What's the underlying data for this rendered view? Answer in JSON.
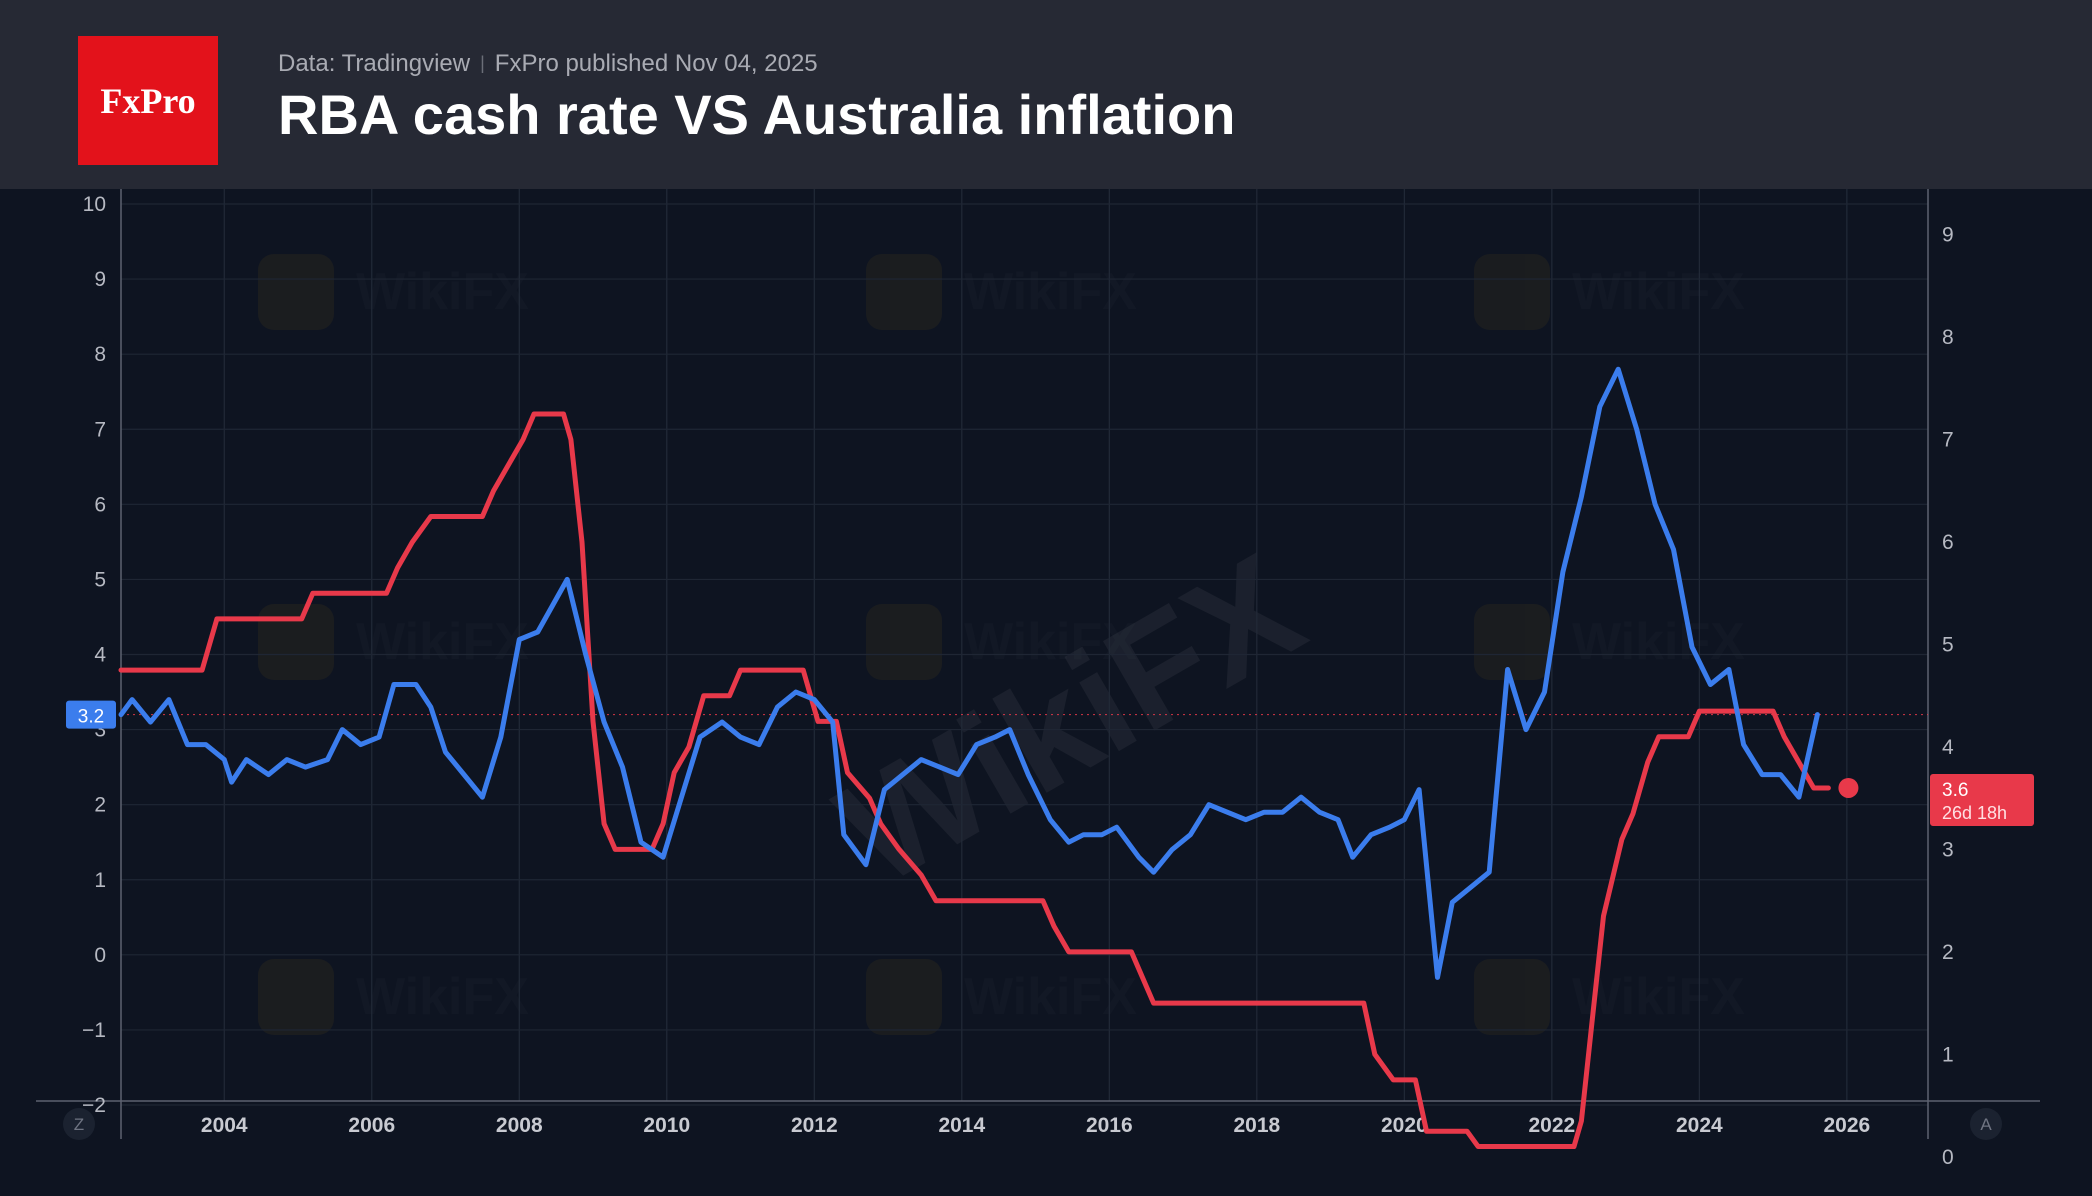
{
  "header": {
    "logo_text": "FxPro",
    "source": "Data: Tradingview",
    "published": "FxPro published Nov 04, 2025",
    "title": "RBA cash rate VS Australia inflation"
  },
  "watermark": "WikiFX",
  "colors": {
    "inflation": "#3b7ded",
    "cash_rate": "#e8394a",
    "background": "#0e1421",
    "header_bg": "#262934",
    "logo": "#e3121b"
  },
  "corner_buttons": {
    "left": "Z",
    "right": "A"
  },
  "chart_data": {
    "type": "line",
    "title": "RBA cash rate VS Australia inflation",
    "x_range": [
      2002.6,
      2027.1
    ],
    "x_ticks": [
      2004,
      2006,
      2008,
      2010,
      2012,
      2014,
      2016,
      2018,
      2020,
      2022,
      2024,
      2026
    ],
    "left_axis": {
      "range": [
        -2,
        10
      ],
      "ticks": [
        -2,
        -1,
        0,
        1,
        2,
        3,
        4,
        5,
        6,
        7,
        8,
        9,
        10
      ]
    },
    "right_axis": {
      "range": [
        -0.5,
        9.3
      ],
      "ticks": [
        0,
        1,
        2,
        3,
        4,
        5,
        6,
        7,
        8,
        9
      ]
    },
    "series": [
      {
        "name": "Australia inflation",
        "axis": "left",
        "color": "#3b7ded",
        "last_label": "3.2",
        "points": [
          [
            2002.6,
            3.2
          ],
          [
            2002.75,
            3.4
          ],
          [
            2003.0,
            3.1
          ],
          [
            2003.25,
            3.4
          ],
          [
            2003.5,
            2.8
          ],
          [
            2003.75,
            2.8
          ],
          [
            2004.0,
            2.6
          ],
          [
            2004.1,
            2.3
          ],
          [
            2004.3,
            2.6
          ],
          [
            2004.6,
            2.4
          ],
          [
            2004.85,
            2.6
          ],
          [
            2005.1,
            2.5
          ],
          [
            2005.4,
            2.6
          ],
          [
            2005.6,
            3.0
          ],
          [
            2005.85,
            2.8
          ],
          [
            2006.1,
            2.9
          ],
          [
            2006.3,
            3.6
          ],
          [
            2006.6,
            3.6
          ],
          [
            2006.8,
            3.3
          ],
          [
            2007.0,
            2.7
          ],
          [
            2007.25,
            2.4
          ],
          [
            2007.5,
            2.1
          ],
          [
            2007.75,
            2.9
          ],
          [
            2008.0,
            4.2
          ],
          [
            2008.25,
            4.3
          ],
          [
            2008.65,
            5.0
          ],
          [
            2008.9,
            4.0
          ],
          [
            2009.15,
            3.1
          ],
          [
            2009.4,
            2.5
          ],
          [
            2009.65,
            1.5
          ],
          [
            2009.95,
            1.3
          ],
          [
            2010.2,
            2.1
          ],
          [
            2010.45,
            2.9
          ],
          [
            2010.75,
            3.1
          ],
          [
            2011.0,
            2.9
          ],
          [
            2011.25,
            2.8
          ],
          [
            2011.5,
            3.3
          ],
          [
            2011.75,
            3.5
          ],
          [
            2012.0,
            3.4
          ],
          [
            2012.25,
            3.1
          ],
          [
            2012.4,
            1.6
          ],
          [
            2012.7,
            1.2
          ],
          [
            2012.95,
            2.2
          ],
          [
            2013.2,
            2.4
          ],
          [
            2013.45,
            2.6
          ],
          [
            2013.7,
            2.5
          ],
          [
            2013.95,
            2.4
          ],
          [
            2014.2,
            2.8
          ],
          [
            2014.45,
            2.9
          ],
          [
            2014.65,
            3.0
          ],
          [
            2014.9,
            2.4
          ],
          [
            2015.2,
            1.8
          ],
          [
            2015.45,
            1.5
          ],
          [
            2015.65,
            1.6
          ],
          [
            2015.9,
            1.6
          ],
          [
            2016.1,
            1.7
          ],
          [
            2016.4,
            1.3
          ],
          [
            2016.6,
            1.1
          ],
          [
            2016.85,
            1.4
          ],
          [
            2017.1,
            1.6
          ],
          [
            2017.35,
            2.0
          ],
          [
            2017.6,
            1.9
          ],
          [
            2017.85,
            1.8
          ],
          [
            2018.1,
            1.9
          ],
          [
            2018.35,
            1.9
          ],
          [
            2018.6,
            2.1
          ],
          [
            2018.85,
            1.9
          ],
          [
            2019.1,
            1.8
          ],
          [
            2019.3,
            1.3
          ],
          [
            2019.55,
            1.6
          ],
          [
            2019.8,
            1.7
          ],
          [
            2020.0,
            1.8
          ],
          [
            2020.2,
            2.2
          ],
          [
            2020.45,
            -0.3
          ],
          [
            2020.65,
            0.7
          ],
          [
            2020.9,
            0.9
          ],
          [
            2021.15,
            1.1
          ],
          [
            2021.4,
            3.8
          ],
          [
            2021.65,
            3.0
          ],
          [
            2021.9,
            3.5
          ],
          [
            2022.15,
            5.1
          ],
          [
            2022.4,
            6.1
          ],
          [
            2022.65,
            7.3
          ],
          [
            2022.9,
            7.8
          ],
          [
            2023.15,
            7.0
          ],
          [
            2023.4,
            6.0
          ],
          [
            2023.65,
            5.4
          ],
          [
            2023.9,
            4.1
          ],
          [
            2024.15,
            3.6
          ],
          [
            2024.4,
            3.8
          ],
          [
            2024.6,
            2.8
          ],
          [
            2024.85,
            2.4
          ],
          [
            2025.1,
            2.4
          ],
          [
            2025.35,
            2.1
          ],
          [
            2025.6,
            3.2
          ]
        ]
      },
      {
        "name": "RBA cash rate",
        "axis": "right",
        "color": "#e8394a",
        "last_label": "3.6",
        "countdown": "26d 18h",
        "points": [
          [
            2002.6,
            4.75
          ],
          [
            2003.7,
            4.75
          ],
          [
            2003.9,
            5.25
          ],
          [
            2005.05,
            5.25
          ],
          [
            2005.2,
            5.5
          ],
          [
            2006.2,
            5.5
          ],
          [
            2006.35,
            5.75
          ],
          [
            2006.55,
            6.0
          ],
          [
            2006.8,
            6.25
          ],
          [
            2007.5,
            6.25
          ],
          [
            2007.65,
            6.5
          ],
          [
            2007.85,
            6.75
          ],
          [
            2008.05,
            7.0
          ],
          [
            2008.2,
            7.25
          ],
          [
            2008.6,
            7.25
          ],
          [
            2008.7,
            7.0
          ],
          [
            2008.85,
            6.0
          ],
          [
            2009.0,
            4.25
          ],
          [
            2009.15,
            3.25
          ],
          [
            2009.3,
            3.0
          ],
          [
            2009.8,
            3.0
          ],
          [
            2009.95,
            3.25
          ],
          [
            2010.1,
            3.75
          ],
          [
            2010.3,
            4.0
          ],
          [
            2010.5,
            4.5
          ],
          [
            2010.85,
            4.5
          ],
          [
            2011.0,
            4.75
          ],
          [
            2011.85,
            4.75
          ],
          [
            2012.05,
            4.25
          ],
          [
            2012.3,
            4.25
          ],
          [
            2012.45,
            3.75
          ],
          [
            2012.75,
            3.5
          ],
          [
            2012.9,
            3.25
          ],
          [
            2013.15,
            3.0
          ],
          [
            2013.45,
            2.75
          ],
          [
            2013.65,
            2.5
          ],
          [
            2015.1,
            2.5
          ],
          [
            2015.25,
            2.25
          ],
          [
            2015.45,
            2.0
          ],
          [
            2016.3,
            2.0
          ],
          [
            2016.45,
            1.75
          ],
          [
            2016.6,
            1.5
          ],
          [
            2019.45,
            1.5
          ],
          [
            2019.6,
            1.0
          ],
          [
            2019.85,
            0.75
          ],
          [
            2020.15,
            0.75
          ],
          [
            2020.3,
            0.25
          ],
          [
            2020.85,
            0.25
          ],
          [
            2021.0,
            0.1
          ],
          [
            2022.3,
            0.1
          ],
          [
            2022.4,
            0.35
          ],
          [
            2022.55,
            1.35
          ],
          [
            2022.7,
            2.35
          ],
          [
            2022.95,
            3.1
          ],
          [
            2023.1,
            3.35
          ],
          [
            2023.3,
            3.85
          ],
          [
            2023.45,
            4.1
          ],
          [
            2023.85,
            4.1
          ],
          [
            2024.0,
            4.35
          ],
          [
            2025.0,
            4.35
          ],
          [
            2025.15,
            4.1
          ],
          [
            2025.35,
            3.85
          ],
          [
            2025.55,
            3.6
          ],
          [
            2025.75,
            3.6
          ]
        ]
      }
    ]
  }
}
